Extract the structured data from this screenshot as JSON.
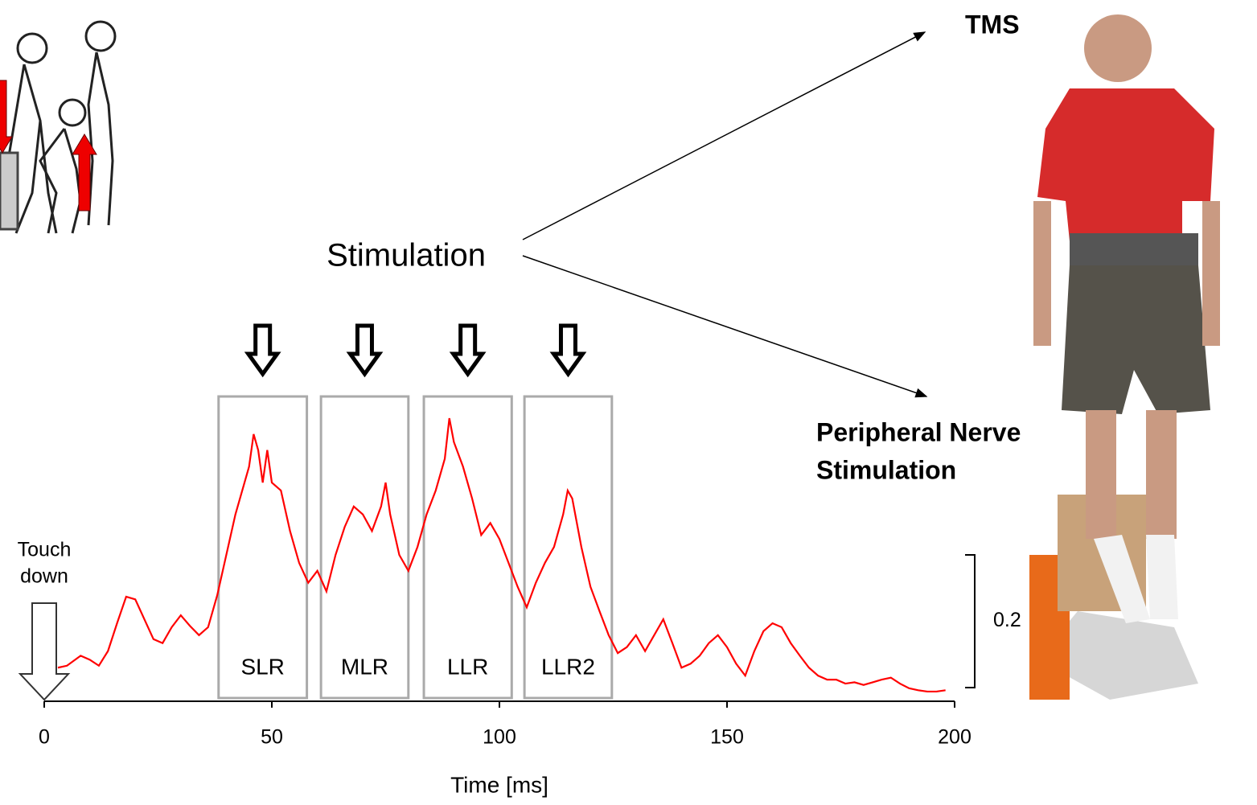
{
  "chart_data": {
    "type": "line",
    "x_label": "Time [ms]",
    "stimulation_label": "Stimulation",
    "tms_label": "TMS",
    "pns_label": [
      "Peripheral Nerve",
      "Stimulation"
    ],
    "touch_down_label": [
      "Touch",
      "down"
    ],
    "xlim": [
      0,
      200
    ],
    "xticks": [
      0,
      50,
      100,
      150,
      200
    ],
    "ylim": [
      0,
      0.4
    ],
    "scale_bar": 0.2,
    "color": "#ff0000",
    "windows": [
      {
        "label": "SLR",
        "start": 38.3,
        "end": 57.7
      },
      {
        "label": "MLR",
        "start": 60.8,
        "end": 80.0
      },
      {
        "label": "LLR",
        "start": 83.4,
        "end": 102.7
      },
      {
        "label": "LLR2",
        "start": 105.5,
        "end": 124.7
      }
    ],
    "x": [
      3,
      5,
      8,
      10,
      12,
      14,
      16,
      18,
      20,
      22,
      24,
      26,
      28,
      30,
      32,
      34,
      36,
      38,
      40,
      42,
      44,
      45,
      46,
      47,
      48,
      49,
      50,
      52,
      54,
      56,
      58,
      60,
      62,
      64,
      66,
      68,
      70,
      72,
      74,
      75,
      76,
      78,
      80,
      82,
      84,
      86,
      88,
      89,
      90,
      92,
      94,
      96,
      98,
      100,
      102,
      104,
      106,
      108,
      110,
      112,
      114,
      115,
      116,
      118,
      120,
      122,
      124,
      126,
      128,
      130,
      132,
      134,
      136,
      138,
      140,
      142,
      144,
      146,
      148,
      150,
      152,
      154,
      156,
      158,
      160,
      162,
      164,
      166,
      168,
      170,
      172,
      174,
      176,
      178,
      180,
      182,
      184,
      186,
      188,
      190,
      192,
      194,
      196,
      198
    ],
    "values": [
      0.03,
      0.033,
      0.048,
      0.042,
      0.033,
      0.055,
      0.097,
      0.137,
      0.133,
      0.103,
      0.073,
      0.067,
      0.091,
      0.109,
      0.093,
      0.079,
      0.091,
      0.139,
      0.2,
      0.261,
      0.309,
      0.333,
      0.382,
      0.358,
      0.309,
      0.358,
      0.309,
      0.297,
      0.236,
      0.188,
      0.158,
      0.176,
      0.145,
      0.2,
      0.242,
      0.273,
      0.261,
      0.236,
      0.273,
      0.309,
      0.261,
      0.2,
      0.176,
      0.212,
      0.261,
      0.297,
      0.345,
      0.406,
      0.37,
      0.333,
      0.285,
      0.23,
      0.248,
      0.224,
      0.188,
      0.152,
      0.121,
      0.158,
      0.188,
      0.212,
      0.261,
      0.297,
      0.285,
      0.212,
      0.152,
      0.115,
      0.079,
      0.052,
      0.061,
      0.079,
      0.055,
      0.079,
      0.103,
      0.067,
      0.03,
      0.036,
      0.048,
      0.067,
      0.079,
      0.061,
      0.036,
      0.018,
      0.055,
      0.085,
      0.097,
      0.091,
      0.067,
      0.048,
      0.03,
      0.018,
      0.012,
      0.012,
      0.006,
      0.008,
      0.004,
      0.008,
      0.012,
      0.015,
      0.006,
      -0.001,
      -0.004,
      -0.006,
      -0.006,
      -0.004
    ]
  }
}
